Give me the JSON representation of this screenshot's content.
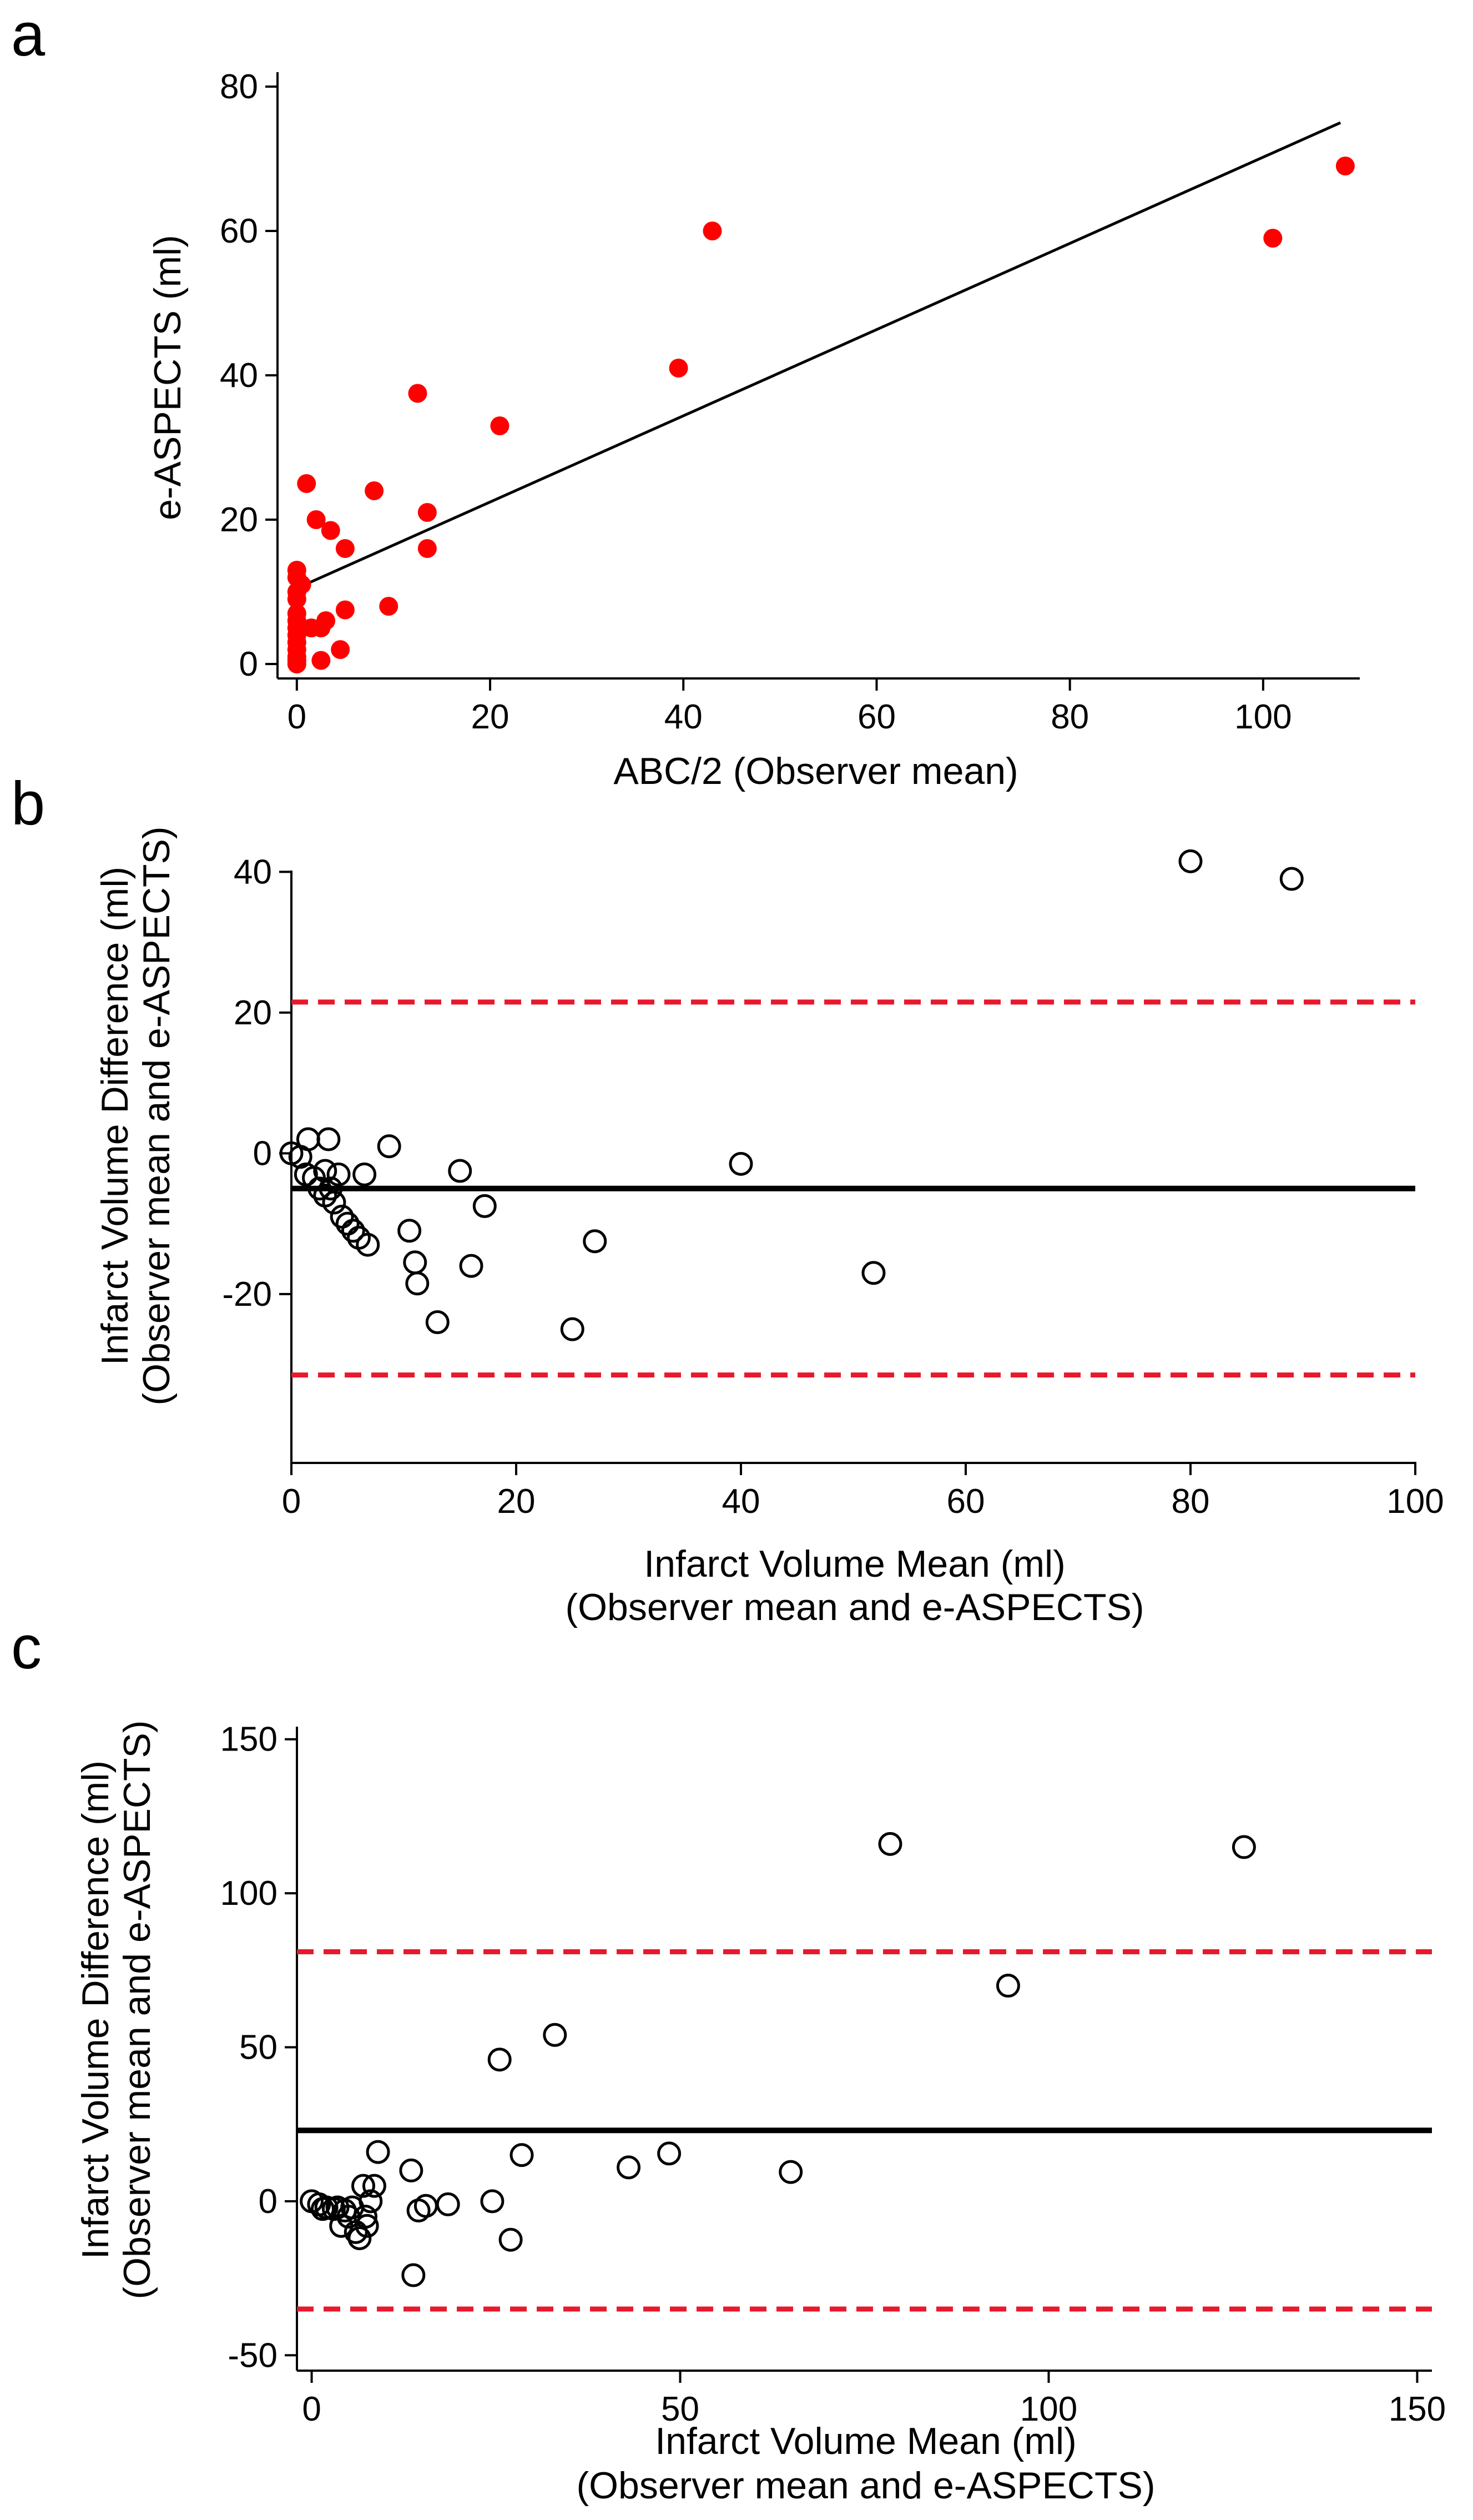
{
  "chart_data": [
    {
      "panel": "a",
      "type": "scatter",
      "xlabel": "ABC/2 (Observer mean)",
      "ylabel": "e-ASPECTS (ml)",
      "xlim": [
        -2,
        110
      ],
      "ylim": [
        -2,
        82
      ],
      "xticks": [
        0,
        20,
        40,
        60,
        80,
        100
      ],
      "yticks": [
        0,
        20,
        40,
        60,
        80
      ],
      "marker": {
        "style": "filled",
        "color": "#ff0000"
      },
      "points": [
        [
          0,
          0
        ],
        [
          0,
          0.5
        ],
        [
          0,
          1
        ],
        [
          0,
          2
        ],
        [
          0,
          3
        ],
        [
          0,
          4
        ],
        [
          0,
          5
        ],
        [
          0,
          6
        ],
        [
          0,
          7
        ],
        [
          0,
          9
        ],
        [
          0,
          10
        ],
        [
          0,
          12
        ],
        [
          0,
          13
        ],
        [
          0.5,
          11
        ],
        [
          1,
          25
        ],
        [
          1.5,
          5
        ],
        [
          2,
          20
        ],
        [
          2.5,
          5
        ],
        [
          2.5,
          0.5
        ],
        [
          3,
          6
        ],
        [
          3.5,
          18.5
        ],
        [
          4.5,
          2
        ],
        [
          5,
          16
        ],
        [
          5,
          7.5
        ],
        [
          8,
          24
        ],
        [
          9.5,
          8
        ],
        [
          12.5,
          37.5
        ],
        [
          13.5,
          21
        ],
        [
          13.5,
          16
        ],
        [
          21,
          33
        ],
        [
          39.5,
          41
        ],
        [
          43,
          60
        ],
        [
          101,
          59
        ],
        [
          108.5,
          69
        ]
      ],
      "fit_line": {
        "x": [
          0,
          108
        ],
        "y": [
          10.5,
          75
        ]
      }
    },
    {
      "panel": "b",
      "type": "scatter",
      "xlabel": "Infarct Volume Mean (ml)",
      "xlabel2": "(Observer mean and e-ASPECTS)",
      "ylabel": "Infarct Volume Difference (ml)",
      "ylabel2": "(Observer mean and e-ASPECTS)",
      "xlim": [
        0,
        100
      ],
      "ylim": [
        -44,
        42
      ],
      "xticks": [
        0,
        20,
        40,
        60,
        80,
        100
      ],
      "yticks": [
        40,
        20,
        0,
        -20
      ],
      "marker": {
        "style": "hollow",
        "color": "#000000"
      },
      "points": [
        [
          0,
          0
        ],
        [
          0.8,
          -0.5
        ],
        [
          1.3,
          -3
        ],
        [
          1.5,
          2
        ],
        [
          2,
          -3.5
        ],
        [
          2.5,
          -5
        ],
        [
          3,
          -2.5
        ],
        [
          3,
          -6
        ],
        [
          3.3,
          2
        ],
        [
          3.5,
          -5
        ],
        [
          3.8,
          -7
        ],
        [
          4.2,
          -3
        ],
        [
          4.5,
          -9
        ],
        [
          5,
          -10
        ],
        [
          5.5,
          -11
        ],
        [
          6,
          -12
        ],
        [
          6.5,
          -3
        ],
        [
          6.8,
          -13
        ],
        [
          8.7,
          1
        ],
        [
          10.5,
          -11
        ],
        [
          11,
          -15.5
        ],
        [
          11.2,
          -18.5
        ],
        [
          13,
          -24
        ],
        [
          15,
          -2.5
        ],
        [
          16,
          -16
        ],
        [
          17.2,
          -7.5
        ],
        [
          25,
          -25
        ],
        [
          27,
          -12.5
        ],
        [
          40,
          -1.5
        ],
        [
          51.8,
          -17
        ],
        [
          80,
          41.5
        ],
        [
          89,
          39
        ]
      ],
      "mean_line": -5,
      "limits_of_agreement": [
        21.5,
        -31.5
      ],
      "line_colors": {
        "mean": "#000000",
        "limits": "#e8192c"
      }
    },
    {
      "panel": "c",
      "type": "scatter",
      "xlabel": "Infarct Volume Mean (ml)",
      "xlabel2": "(Observer mean and e-ASPECTS)",
      "ylabel": "Infarct Volume Difference (ml)",
      "ylabel2": "(Observer mean and e-ASPECTS)",
      "xlim": [
        -2,
        152
      ],
      "ylim": [
        -55,
        155
      ],
      "xticks": [
        0,
        50,
        100,
        150
      ],
      "yticks": [
        150,
        100,
        50,
        0,
        -50
      ],
      "marker": {
        "style": "hollow",
        "color": "#000000"
      },
      "points": [
        [
          0,
          0
        ],
        [
          1,
          -1
        ],
        [
          1.5,
          -2.5
        ],
        [
          2,
          -2
        ],
        [
          3,
          -2.5
        ],
        [
          3.5,
          -2
        ],
        [
          4,
          -8
        ],
        [
          4.5,
          -3
        ],
        [
          5,
          -5
        ],
        [
          5.5,
          -2
        ],
        [
          6,
          -10
        ],
        [
          6.5,
          -12
        ],
        [
          7,
          5
        ],
        [
          7.3,
          -5
        ],
        [
          7.5,
          -8
        ],
        [
          8,
          0
        ],
        [
          8.5,
          5
        ],
        [
          9,
          16
        ],
        [
          13.5,
          10
        ],
        [
          13.8,
          -24
        ],
        [
          14.5,
          -3
        ],
        [
          15.5,
          -1.5
        ],
        [
          18.5,
          -1
        ],
        [
          24.5,
          0
        ],
        [
          25.5,
          46
        ],
        [
          27,
          -12.5
        ],
        [
          28.5,
          15
        ],
        [
          33,
          54
        ],
        [
          43,
          11
        ],
        [
          48.5,
          15.5
        ],
        [
          65,
          9.5
        ],
        [
          78.5,
          116
        ],
        [
          94.5,
          70
        ],
        [
          126.5,
          115
        ]
      ],
      "mean_line": 23,
      "limits_of_agreement": [
        81,
        -35
      ],
      "line_colors": {
        "mean": "#000000",
        "limits": "#e8192c"
      }
    }
  ],
  "panel_labels": [
    "a",
    "b",
    "c"
  ]
}
